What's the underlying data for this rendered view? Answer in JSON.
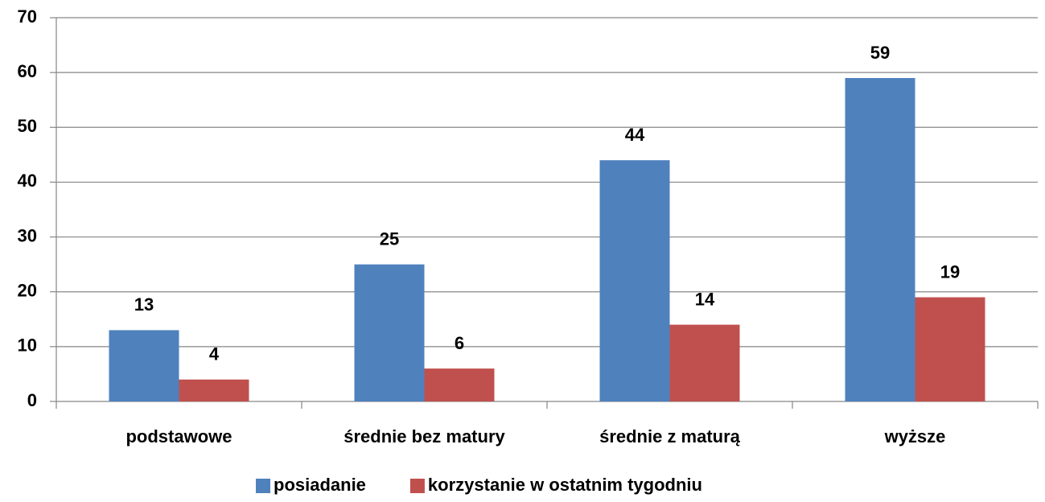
{
  "chart_data": {
    "type": "bar",
    "categories": [
      "podstawowe",
      "średnie bez matury",
      "średnie z maturą",
      "wyższe"
    ],
    "series": [
      {
        "name": "posiadanie",
        "color": "#4f81bd",
        "values": [
          13,
          25,
          44,
          59
        ]
      },
      {
        "name": "korzystanie w ostatnim tygodniu",
        "color": "#c0504d",
        "values": [
          4,
          6,
          14,
          19
        ]
      }
    ],
    "ylim": [
      0,
      70
    ],
    "yticks": [
      0,
      10,
      20,
      30,
      40,
      50,
      60,
      70
    ],
    "grid": true,
    "legend": "bottom"
  }
}
